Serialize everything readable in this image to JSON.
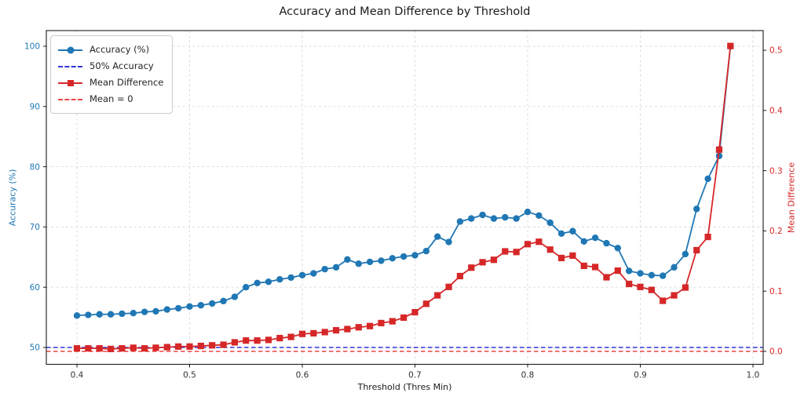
{
  "chart_data": {
    "type": "line",
    "title": "Accuracy and Mean Difference by Threshold",
    "xlabel": "Threshold (Thres Min)",
    "ylabel_left": "Accuracy (%)",
    "ylabel_right": "Mean Difference",
    "grid": true,
    "legend_position": "upper left",
    "xlim": [
      0.37282,
      1.00906
    ],
    "yleft_lim": [
      47.2,
      102.6
    ],
    "yright_lim": [
      -0.0215,
      0.5326
    ],
    "x_ticks": [
      0.4,
      0.5,
      0.6,
      0.7,
      0.8,
      0.9,
      1.0
    ],
    "x_tick_labels": [
      "0.4",
      "0.5",
      "0.6",
      "0.7",
      "0.8",
      "0.9",
      "1.0"
    ],
    "yleft_ticks": [
      50,
      60,
      70,
      80,
      90,
      100
    ],
    "yleft_tick_labels": [
      "50",
      "60",
      "70",
      "80",
      "90",
      "100"
    ],
    "yright_ticks": [
      0.0,
      0.1,
      0.2,
      0.3,
      0.4,
      0.5
    ],
    "yright_tick_labels": [
      "0.0",
      "0.1",
      "0.2",
      "0.3",
      "0.4",
      "0.5"
    ],
    "x": [
      0.4,
      0.41,
      0.42,
      0.43,
      0.44,
      0.45,
      0.46,
      0.47,
      0.48,
      0.49,
      0.5,
      0.51,
      0.52,
      0.53,
      0.54,
      0.55,
      0.56,
      0.57,
      0.58,
      0.59,
      0.6,
      0.61,
      0.62,
      0.63,
      0.64,
      0.65,
      0.66,
      0.67,
      0.68,
      0.69,
      0.7,
      0.71,
      0.72,
      0.73,
      0.74,
      0.75,
      0.76,
      0.77,
      0.78,
      0.79,
      0.8,
      0.81,
      0.82,
      0.83,
      0.84,
      0.85,
      0.86,
      0.87,
      0.88,
      0.89,
      0.9,
      0.91,
      0.92,
      0.93,
      0.94,
      0.95,
      0.96,
      0.97,
      0.98
    ],
    "series": [
      {
        "name": "Accuracy (%)",
        "axis": "left",
        "color": "#1f77b4",
        "marker": "circle",
        "values": [
          55.3,
          55.4,
          55.5,
          55.5,
          55.6,
          55.7,
          55.9,
          56.0,
          56.3,
          56.5,
          56.8,
          57.0,
          57.3,
          57.7,
          58.4,
          60.0,
          60.7,
          60.9,
          61.3,
          61.6,
          62.0,
          62.3,
          63.0,
          63.3,
          64.6,
          63.9,
          64.2,
          64.4,
          64.8,
          65.1,
          65.3,
          66.0,
          68.4,
          67.5,
          70.9,
          71.4,
          72.0,
          71.4,
          71.6,
          71.4,
          72.5,
          71.9,
          70.7,
          68.9,
          69.3,
          67.6,
          68.2,
          67.3,
          66.5,
          62.7,
          62.3,
          62.0,
          61.9,
          63.3,
          65.5,
          73.0,
          78.0,
          81.8,
          100.0
        ]
      },
      {
        "name": "Mean Difference",
        "axis": "right",
        "color": "#d62728",
        "marker": "square",
        "values": [
          0.005,
          0.005,
          0.005,
          0.004,
          0.005,
          0.006,
          0.005,
          0.006,
          0.007,
          0.008,
          0.008,
          0.009,
          0.01,
          0.011,
          0.015,
          0.018,
          0.018,
          0.019,
          0.022,
          0.024,
          0.029,
          0.03,
          0.032,
          0.035,
          0.037,
          0.04,
          0.042,
          0.047,
          0.05,
          0.056,
          0.065,
          0.079,
          0.093,
          0.107,
          0.125,
          0.139,
          0.148,
          0.152,
          0.166,
          0.165,
          0.178,
          0.182,
          0.169,
          0.155,
          0.159,
          0.142,
          0.14,
          0.123,
          0.134,
          0.112,
          0.107,
          0.102,
          0.084,
          0.093,
          0.106,
          0.168,
          0.19,
          0.335,
          0.507
        ]
      }
    ],
    "reference_lines": [
      {
        "label": "50% Accuracy",
        "axis": "left",
        "value": 50,
        "color": "#3434dd",
        "style": "dashed"
      },
      {
        "label": "Mean = 0",
        "axis": "right",
        "value": 0,
        "color": "#ee4545",
        "style": "dashed"
      }
    ],
    "legend": [
      {
        "label": "Accuracy (%)",
        "color": "#1f77b4",
        "line": "solid",
        "marker": "circle"
      },
      {
        "label": "50% Accuracy",
        "color": "#3434dd",
        "line": "dashed",
        "marker": "none"
      },
      {
        "label": "Mean Difference",
        "color": "#d62728",
        "line": "solid",
        "marker": "square"
      },
      {
        "label": "Mean = 0",
        "color": "#ee4545",
        "line": "dashed",
        "marker": "none"
      }
    ],
    "colors": {
      "accuracy": "#1f77b4",
      "mean_difference": "#d62728",
      "grid": "#d9d9d9",
      "spine": "#1a1a1a",
      "x_tick_label": "#333333"
    }
  }
}
